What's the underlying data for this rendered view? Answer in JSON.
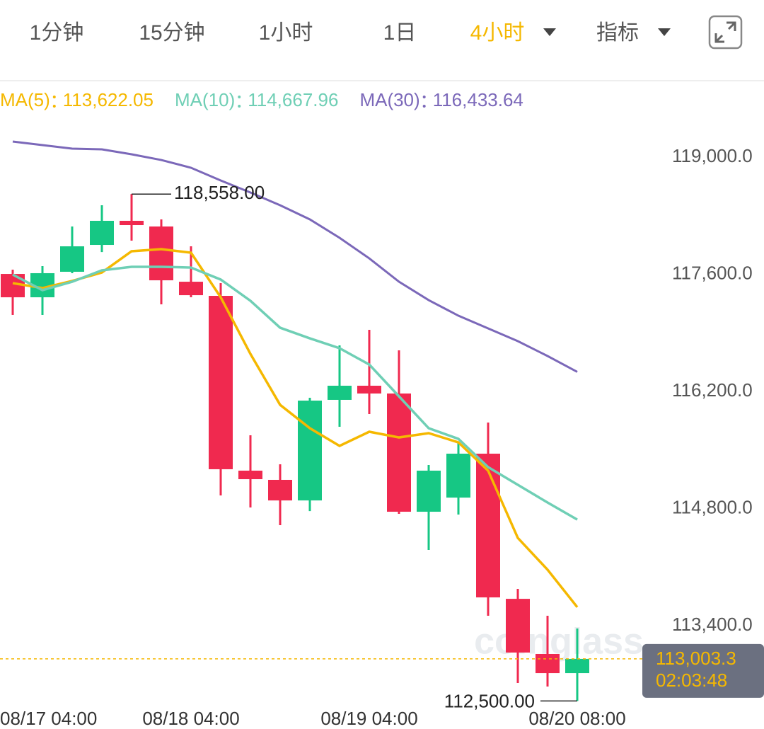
{
  "tabs": [
    "1分钟",
    "15分钟",
    "1小时",
    "1日",
    "4小时",
    "指标"
  ],
  "active_tab": 4,
  "chart_data": {
    "type": "candlestick",
    "watermark": "coinglass",
    "categories": [
      "08/17 04:00",
      null,
      null,
      null,
      null,
      null,
      "08/18 04:00",
      null,
      null,
      null,
      null,
      null,
      "08/19 04:00",
      null,
      null,
      null,
      null,
      null,
      null,
      "08/20 08:00"
    ],
    "open": [
      117604,
      117325,
      117630,
      117951,
      118239,
      118171,
      117511,
      117342,
      115253,
      115143,
      114897,
      116099,
      116268,
      116175,
      114762,
      114931,
      115456,
      113721,
      113062,
      112833
    ],
    "high": [
      117655,
      117697,
      118171,
      118425,
      118558,
      118256,
      117934,
      117494,
      115676,
      115329,
      116124,
      116750,
      116936,
      116691,
      115320,
      115591,
      115828,
      113840,
      113519,
      113366
    ],
    "low": [
      117114,
      117114,
      117613,
      117866,
      118002,
      117241,
      117325,
      114957,
      114813,
      114601,
      114770,
      115777,
      115929,
      114737,
      114305,
      114728,
      113519,
      112715,
      112673,
      112500
    ],
    "close": [
      117325,
      117613,
      117934,
      118239,
      118188,
      117528,
      117350,
      115270,
      115151,
      114897,
      116090,
      116268,
      116175,
      114762,
      115253,
      115456,
      113738,
      113079,
      112833,
      113003.3
    ],
    "up_color": "#16c784",
    "down_color": "#f0294f",
    "series": [
      {
        "name": "MA(5)",
        "color": "#f5b800",
        "legend_label": "113,622.05",
        "values": [
          117494,
          117435,
          117520,
          117621,
          117875,
          117900,
          117858,
          117325,
          116648,
          116039,
          115760,
          115549,
          115718,
          115650,
          115701,
          115591,
          115253,
          114449,
          114069,
          113622.05
        ]
      },
      {
        "name": "MA(10)",
        "color": "#6fcfb5",
        "legend_label": "114,667.96",
        "values": [
          117596,
          117410,
          117511,
          117647,
          117689,
          117689,
          117680,
          117537,
          117283,
          116961,
          116834,
          116716,
          116521,
          116141,
          115760,
          115633,
          115295,
          115084,
          114872,
          114667.96
        ]
      },
      {
        "name": "MA(30)",
        "color": "#7b68b9",
        "legend_label": "116,433.64",
        "values": [
          119186,
          119144,
          119102,
          119093,
          119034,
          118966,
          118873,
          118721,
          118577,
          118425,
          118256,
          118036,
          117790,
          117511,
          117291,
          117105,
          116953,
          116801,
          116623,
          116433.64
        ]
      }
    ],
    "max_label": "118,558.00",
    "min_label": "112,500.00",
    "current_price": {
      "value": 113003.3,
      "label": "113,003.3"
    },
    "countdown": "02:03:48",
    "ylim": [
      112419,
      119440
    ],
    "yticks": [
      {
        "value": 113400,
        "label": "113,400.0"
      },
      {
        "value": 114800,
        "label": "114,800.0"
      },
      {
        "value": 116200,
        "label": "116,200.0"
      },
      {
        "value": 117600,
        "label": "117,600.0"
      },
      {
        "value": 119000,
        "label": "119,000.0"
      }
    ]
  }
}
